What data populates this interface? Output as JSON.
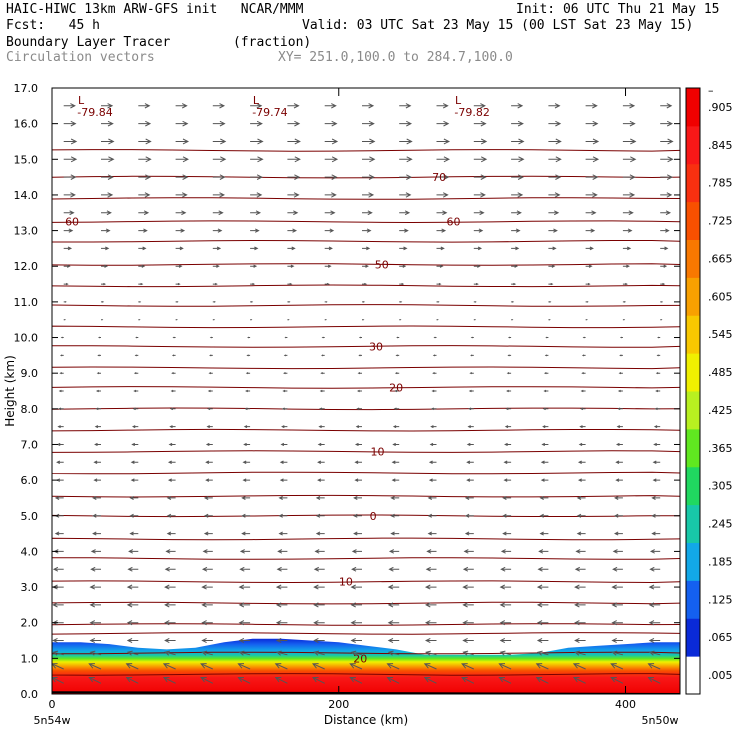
{
  "header": {
    "title_line": "HAIC-HIWC 13km ARW-GFS init   NCAR/MMM",
    "fcst_line": "Fcst:   45 h",
    "init_line": "Init: 06 UTC Thu 21 May 15",
    "valid_line": "Valid: 03 UTC Sat 23 May 15 (00 LST Sat 23 May 15)",
    "field_line": "Boundary Layer Tracer        (fraction)",
    "vector_line": "Circulation vectors",
    "xsec_line": "XY= 251.0,100.0 to 284.7,100.0"
  },
  "chart_data": {
    "type": "heatmap",
    "xlabel": "Distance (km)",
    "ylabel": "Height (km)",
    "xlim": [
      0,
      438
    ],
    "ylim": [
      0,
      17
    ],
    "x_ticks": [
      0,
      200,
      400
    ],
    "y_ticks": [
      0.0,
      1.0,
      2.0,
      3.0,
      4.0,
      5.0,
      6.0,
      7.0,
      8.0,
      9.0,
      10.0,
      11.0,
      12.0,
      13.0,
      14.0,
      15.0,
      16.0,
      17.0
    ],
    "y_tick_labels": [
      "0.0",
      "1.0",
      "2.0",
      "3.0",
      "4.0",
      "5.0",
      "6.0",
      "7.0",
      "8.0",
      "9.0",
      "10.0",
      "11.0",
      "12.0",
      "13.0",
      "14.0",
      "15.0",
      "16.0",
      "17.0"
    ],
    "x_end_labels": {
      "left": "5n54w",
      "right": "5n50w"
    },
    "colorbar": {
      "colors": [
        "#ffffff",
        "#0a2ad8",
        "#1460f0",
        "#12a8e8",
        "#18c8a8",
        "#20d860",
        "#60e820",
        "#b8f020",
        "#f0f000",
        "#f8c800",
        "#f8a000",
        "#f87800",
        "#f85000",
        "#f83010",
        "#f81818",
        "#f00000"
      ],
      "labels": [
        ".005",
        ".065",
        ".125",
        ".185",
        ".245",
        ".305",
        ".365",
        ".425",
        ".485",
        ".545",
        ".605",
        ".665",
        ".725",
        ".785",
        ".845",
        ".905",
        "–"
      ]
    },
    "tracer_layer": {
      "x": [
        0,
        20,
        40,
        60,
        80,
        100,
        120,
        140,
        160,
        180,
        200,
        220,
        240,
        260,
        280,
        300,
        320,
        340,
        360,
        380,
        400,
        420,
        438
      ],
      "top_km": [
        1.45,
        1.45,
        1.4,
        1.3,
        1.25,
        1.3,
        1.45,
        1.55,
        1.55,
        1.5,
        1.45,
        1.35,
        1.25,
        1.1,
        1.1,
        1.1,
        1.1,
        1.15,
        1.3,
        1.35,
        1.4,
        1.45,
        1.45
      ]
    },
    "temperature_contours": {
      "levels_km": [
        0.55,
        1.15,
        1.7,
        1.95,
        2.55,
        3.15,
        3.8,
        4.35,
        5.0,
        5.55,
        6.2,
        6.8,
        7.4,
        8.0,
        8.6,
        9.15,
        9.75,
        10.3,
        10.9,
        11.45,
        12.05,
        12.7,
        13.25,
        13.9,
        14.5,
        15.25
      ],
      "labels": [
        {
          "text": "20",
          "x": 215,
          "y": 1.0
        },
        {
          "text": "10",
          "x": 205,
          "y": 3.15
        },
        {
          "text": "0",
          "x": 224,
          "y": 5.0
        },
        {
          "text": "10",
          "x": 227,
          "y": 6.8
        },
        {
          "text": "20",
          "x": 240,
          "y": 8.6
        },
        {
          "text": "30",
          "x": 226,
          "y": 9.75
        },
        {
          "text": "50",
          "x": 230,
          "y": 12.05
        },
        {
          "text": "60",
          "x": 14,
          "y": 13.25
        },
        {
          "text": "60",
          "x": 280,
          "y": 13.25
        },
        {
          "text": "70",
          "x": 270,
          "y": 14.5
        }
      ]
    },
    "minima": [
      {
        "text": "-79.84",
        "x": 30,
        "y": 16.5
      },
      {
        "text": "-79.74",
        "x": 152,
        "y": 16.5
      },
      {
        "text": "-79.82",
        "x": 293,
        "y": 16.5
      }
    ],
    "minimum_marker": "L",
    "wind_vectors": {
      "levels": [
        {
          "z": 0.3,
          "u": -0.9,
          "w": 0.45
        },
        {
          "z": 0.7,
          "u": -0.9,
          "w": 0.4
        },
        {
          "z": 1.1,
          "u": -0.8,
          "w": 0.2
        },
        {
          "z": 1.5,
          "u": -0.8,
          "w": 0.0
        },
        {
          "z": 2.0,
          "u": -0.8,
          "w": 0.0
        },
        {
          "z": 2.5,
          "u": -0.8,
          "w": 0.0
        },
        {
          "z": 3.0,
          "u": -0.8,
          "w": 0.0
        },
        {
          "z": 3.5,
          "u": -0.75,
          "w": 0.0
        },
        {
          "z": 4.0,
          "u": -0.7,
          "w": 0.0
        },
        {
          "z": 4.5,
          "u": -0.6,
          "w": 0.0
        },
        {
          "z": 5.0,
          "u": -0.6,
          "w": 0.0
        },
        {
          "z": 5.5,
          "u": -0.6,
          "w": 0.0
        },
        {
          "z": 6.0,
          "u": -0.5,
          "w": 0.0
        },
        {
          "z": 6.5,
          "u": -0.5,
          "w": 0.0
        },
        {
          "z": 7.0,
          "u": -0.45,
          "w": 0.0
        },
        {
          "z": 7.5,
          "u": -0.4,
          "w": 0.0
        },
        {
          "z": 8.0,
          "u": -0.35,
          "w": 0.0
        },
        {
          "z": 8.5,
          "u": -0.3,
          "w": 0.0
        },
        {
          "z": 9.0,
          "u": -0.25,
          "w": 0.0
        },
        {
          "z": 9.5,
          "u": -0.2,
          "w": 0.0
        },
        {
          "z": 10.0,
          "u": -0.15,
          "w": 0.0
        },
        {
          "z": 10.5,
          "u": 0.1,
          "w": 0.0
        },
        {
          "z": 11.0,
          "u": 0.15,
          "w": 0.0
        },
        {
          "z": 11.5,
          "u": 0.3,
          "w": 0.0
        },
        {
          "z": 12.0,
          "u": 0.45,
          "w": 0.0
        },
        {
          "z": 12.5,
          "u": 0.55,
          "w": 0.0
        },
        {
          "z": 13.0,
          "u": 0.65,
          "w": 0.0
        },
        {
          "z": 13.5,
          "u": 0.75,
          "w": 0.0
        },
        {
          "z": 14.0,
          "u": 0.85,
          "w": 0.0
        },
        {
          "z": 14.5,
          "u": 0.9,
          "w": 0.0
        },
        {
          "z": 15.0,
          "u": 0.95,
          "w": 0.0
        },
        {
          "z": 15.5,
          "u": 0.95,
          "w": 0.0
        },
        {
          "z": 16.0,
          "u": 0.9,
          "w": 0.0
        },
        {
          "z": 16.5,
          "u": 0.85,
          "w": 0.0
        }
      ],
      "x_positions": [
        4,
        30,
        56,
        82,
        108,
        134,
        160,
        186,
        212,
        238,
        264,
        290,
        316,
        342,
        368,
        394,
        420
      ]
    },
    "colors": {
      "contour": "#7a0000",
      "vector": "#555555",
      "frame": "#000000"
    }
  }
}
